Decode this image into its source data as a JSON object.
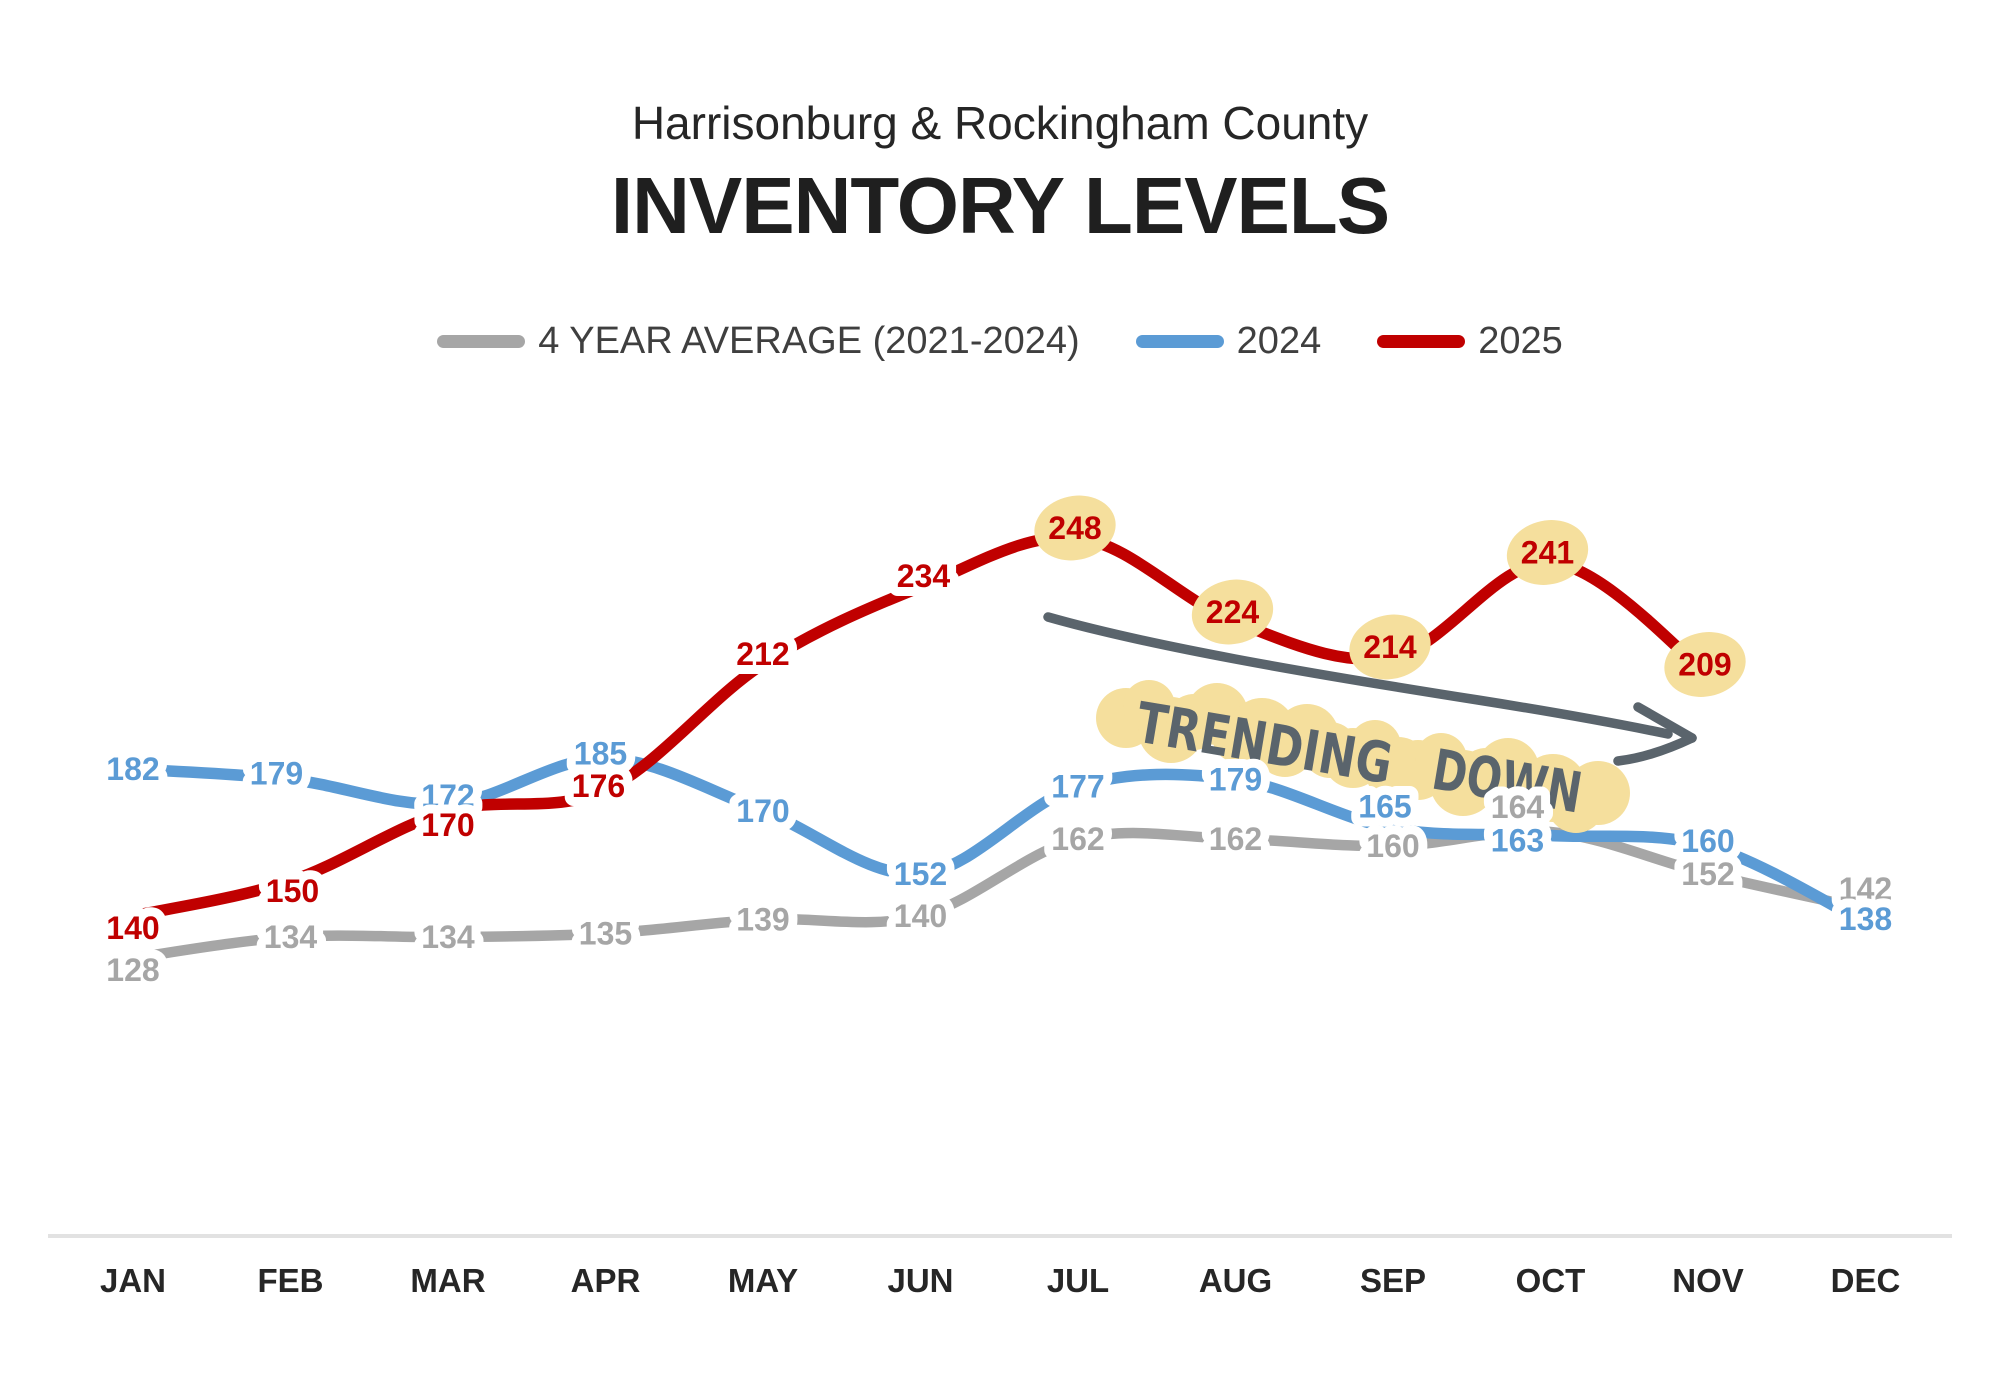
{
  "header": {
    "subtitle": "Harrisonburg & Rockingham County",
    "title": "INVENTORY LEVELS"
  },
  "annotation": {
    "text": "TRENDING DOWN"
  },
  "colors": {
    "average_line": "#a6a6a6",
    "line_2024": "#5b9bd5",
    "line_2025": "#c00000",
    "point_highlight": "#f5df9d",
    "annotation_ink": "#5a646c",
    "axis_line": "#e2e2e2",
    "month_label": "#262626",
    "legend_text": "#3f3f3f",
    "subtitle_text": "#262626",
    "title_text": "#1f1f1f"
  },
  "chart_data": {
    "type": "line",
    "title": "INVENTORY LEVELS",
    "subtitle": "Harrisonburg & Rockingham County",
    "categories": [
      "JAN",
      "FEB",
      "MAR",
      "APR",
      "MAY",
      "JUN",
      "JUL",
      "AUG",
      "SEP",
      "OCT",
      "NOV",
      "DEC"
    ],
    "series": [
      {
        "name": "4 YEAR AVERAGE (2021-2024)",
        "color": "#a6a6a6",
        "values": [
          128,
          134,
          134,
          135,
          139,
          140,
          162,
          162,
          160,
          164,
          152,
          142
        ]
      },
      {
        "name": "2024",
        "color": "#5b9bd5",
        "values": [
          182,
          179,
          172,
          185,
          170,
          152,
          177,
          179,
          165,
          163,
          160,
          138
        ]
      },
      {
        "name": "2025",
        "color": "#c00000",
        "values": [
          140,
          150,
          170,
          176,
          212,
          234,
          248,
          224,
          214,
          241,
          209,
          null
        ],
        "highlighted_categories": [
          "JUL",
          "AUG",
          "SEP",
          "OCT",
          "NOV"
        ]
      }
    ],
    "annotations": [
      {
        "type": "arrow-with-text",
        "text": "TRENDING DOWN",
        "style": "handwritten, yellow highlighter, pointing down-right"
      }
    ],
    "legend_position": "top",
    "grid": false,
    "y_axis_visible": false,
    "data_labels": "all points labeled with values"
  }
}
